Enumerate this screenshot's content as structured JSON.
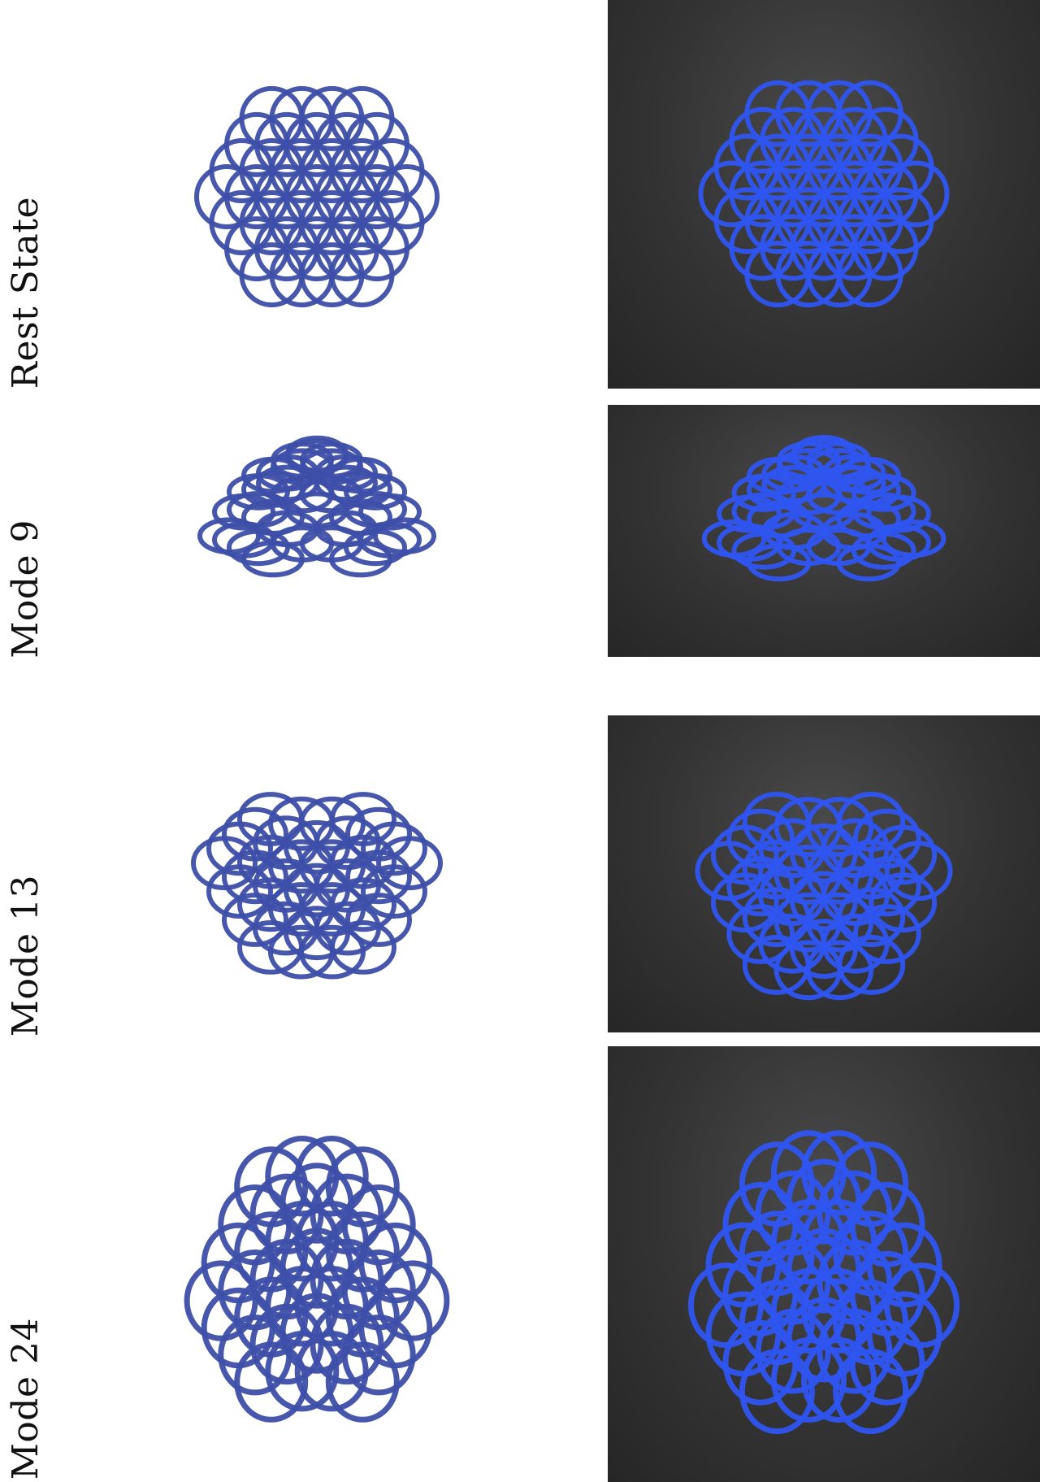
{
  "rows": [
    {
      "label": "Rest State"
    },
    {
      "label": "Mode 9"
    },
    {
      "label": "Mode 13"
    },
    {
      "label": "Mode 24"
    }
  ],
  "colors": {
    "sim_blue": "#3d4fa8",
    "photo_blue": "#2f55f0",
    "photo_background": "#333333"
  }
}
